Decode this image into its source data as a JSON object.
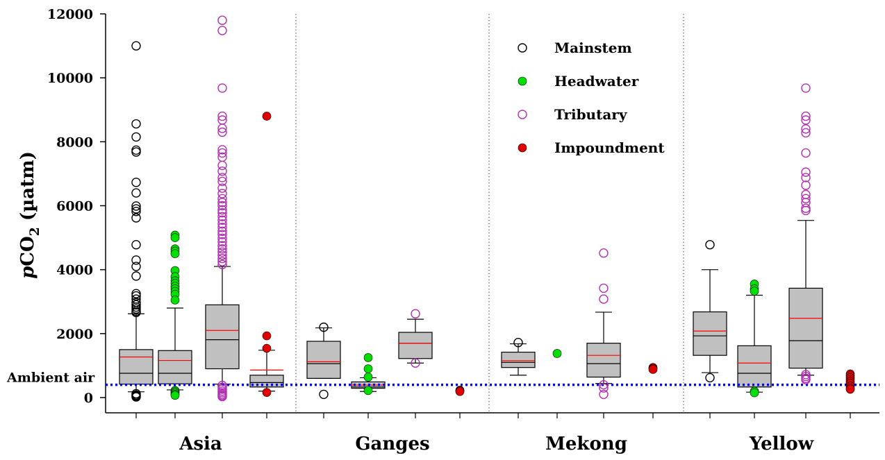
{
  "chart_data": {
    "type": "box",
    "ylabel": "pCO2 (µatm)",
    "ylabel_parts": {
      "italic": "p",
      "main": "CO",
      "sub": "2",
      "unit": " (µatm)"
    },
    "ylim": [
      0,
      12000
    ],
    "yticks": [
      "0",
      "2000",
      "4000",
      "6000",
      "8000",
      "10000",
      "12000"
    ],
    "ytick_values": [
      0,
      2000,
      4000,
      6000,
      8000,
      10000,
      12000
    ],
    "ambient_air": {
      "label": "Ambient air",
      "value": 400,
      "color": "#0000ff",
      "style": "dotted"
    },
    "groups": [
      "Asia",
      "Ganges",
      "Mekong",
      "Yellow"
    ],
    "categories": [
      {
        "name": "Mainstem",
        "marker": "open",
        "color": "#000000"
      },
      {
        "name": "Headwater",
        "marker": "filled",
        "color": "#00e000"
      },
      {
        "name": "Tributary",
        "marker": "open",
        "color": "#b030b0"
      },
      {
        "name": "Impoundment",
        "marker": "filled",
        "color": "#e00000"
      }
    ],
    "legend": [
      "Mainstem",
      "Headwater",
      "Tributary",
      "Impoundment"
    ],
    "legend_position": "top-center",
    "box_fill": "#c0c0c0",
    "mean_line_color": "#ff0000",
    "median_line_color": "#000000",
    "boxes": [
      {
        "group": "Asia",
        "category": "Mainstem",
        "box": true,
        "whisker_low": 180,
        "q1": 420,
        "median": 760,
        "mean": 1270,
        "q3": 1500,
        "whisker_high": 2620,
        "outliers": [
          11000,
          8560,
          8150,
          7740,
          7680,
          6730,
          6400,
          5990,
          5900,
          5820,
          5620,
          4780,
          4300,
          4100,
          3800,
          3250,
          3180,
          3080,
          2970,
          2900,
          2830,
          2770,
          2700,
          2660,
          120,
          80,
          50,
          20
        ]
      },
      {
        "group": "Asia",
        "category": "Headwater",
        "box": true,
        "whisker_low": 240,
        "q1": 430,
        "median": 760,
        "mean": 1160,
        "q3": 1470,
        "whisker_high": 2800,
        "outliers": [
          5080,
          5000,
          4650,
          4580,
          4500,
          3970,
          3780,
          3650,
          3570,
          3480,
          3400,
          3320,
          3230,
          3050,
          220,
          180,
          140,
          100,
          70
        ]
      },
      {
        "group": "Asia",
        "category": "Tributary",
        "box": true,
        "whisker_low": 420,
        "q1": 900,
        "median": 1810,
        "mean": 2100,
        "q3": 2900,
        "whisker_high": 4100,
        "outliers": [
          11800,
          11480,
          9680,
          8800,
          8680,
          8420,
          8300,
          7750,
          7650,
          7520,
          7260,
          7080,
          6880,
          6760,
          6550,
          6380,
          6220,
          6100,
          6000,
          5870,
          5780,
          5660,
          5550,
          5430,
          5320,
          5200,
          5100,
          4980,
          4870,
          4750,
          4650,
          4550,
          4450,
          4350,
          4250,
          4160,
          380,
          320,
          260,
          200,
          150,
          100,
          60,
          30
        ]
      },
      {
        "group": "Asia",
        "category": "Impoundment",
        "box": true,
        "whisker_low": 200,
        "q1": 330,
        "median": 470,
        "mean": 860,
        "q3": 700,
        "whisker_high": 1480,
        "outliers": [
          8800,
          1930,
          1540,
          160
        ]
      },
      {
        "group": "Ganges",
        "category": "Mainstem",
        "box": true,
        "whisker_low": 600,
        "q1": 600,
        "median": 1060,
        "mean": 1120,
        "q3": 1760,
        "whisker_high": 2180,
        "outliers": [
          2200,
          100
        ]
      },
      {
        "group": "Ganges",
        "category": "Headwater",
        "box": true,
        "whisker_low": 190,
        "q1": 290,
        "median": 330,
        "mean": 390,
        "q3": 490,
        "whisker_high": 620,
        "outliers": [
          1250,
          900,
          640,
          220
        ]
      },
      {
        "group": "Ganges",
        "category": "Tributary",
        "box": true,
        "whisker_low": 1080,
        "q1": 1220,
        "median": 1700,
        "mean": 1700,
        "q3": 2040,
        "whisker_high": 2450,
        "outliers": [
          2620,
          1080
        ]
      },
      {
        "group": "Ganges",
        "category": "Impoundment",
        "box": false,
        "outliers": [
          230,
          210,
          190
        ]
      },
      {
        "group": "Mekong",
        "category": "Mainstem",
        "box": true,
        "whisker_low": 700,
        "q1": 940,
        "median": 1100,
        "mean": 1150,
        "q3": 1420,
        "whisker_high": 1680,
        "outliers": [
          1720
        ]
      },
      {
        "group": "Mekong",
        "category": "Headwater",
        "box": false,
        "outliers": [
          1380
        ]
      },
      {
        "group": "Mekong",
        "category": "Tributary",
        "box": true,
        "whisker_low": 440,
        "q1": 640,
        "median": 1060,
        "mean": 1320,
        "q3": 1700,
        "whisker_high": 2670,
        "outliers": [
          4520,
          3420,
          3080,
          400,
          300,
          100
        ]
      },
      {
        "group": "Mekong",
        "category": "Impoundment",
        "box": false,
        "outliers": [
          940,
          910,
          880
        ]
      },
      {
        "group": "Yellow",
        "category": "Mainstem",
        "box": true,
        "whisker_low": 780,
        "q1": 1320,
        "median": 1930,
        "mean": 2080,
        "q3": 2680,
        "whisker_high": 4000,
        "outliers": [
          4780,
          620
        ]
      },
      {
        "group": "Yellow",
        "category": "Headwater",
        "box": true,
        "whisker_low": 170,
        "q1": 330,
        "median": 760,
        "mean": 1080,
        "q3": 1620,
        "whisker_high": 3200,
        "outliers": [
          3550,
          3400,
          3330,
          200,
          150
        ]
      },
      {
        "group": "Yellow",
        "category": "Tributary",
        "box": true,
        "whisker_low": 700,
        "q1": 920,
        "median": 1780,
        "mean": 2480,
        "q3": 3420,
        "whisker_high": 5540,
        "outliers": [
          9680,
          8800,
          8680,
          8400,
          8280,
          7650,
          7050,
          6880,
          6640,
          6350,
          6220,
          6100,
          5920,
          5850,
          720,
          660,
          600,
          560
        ]
      },
      {
        "group": "Yellow",
        "category": "Impoundment",
        "box": false,
        "outliers": [
          740,
          680,
          620,
          560,
          500,
          440,
          360,
          300,
          260
        ]
      }
    ]
  }
}
